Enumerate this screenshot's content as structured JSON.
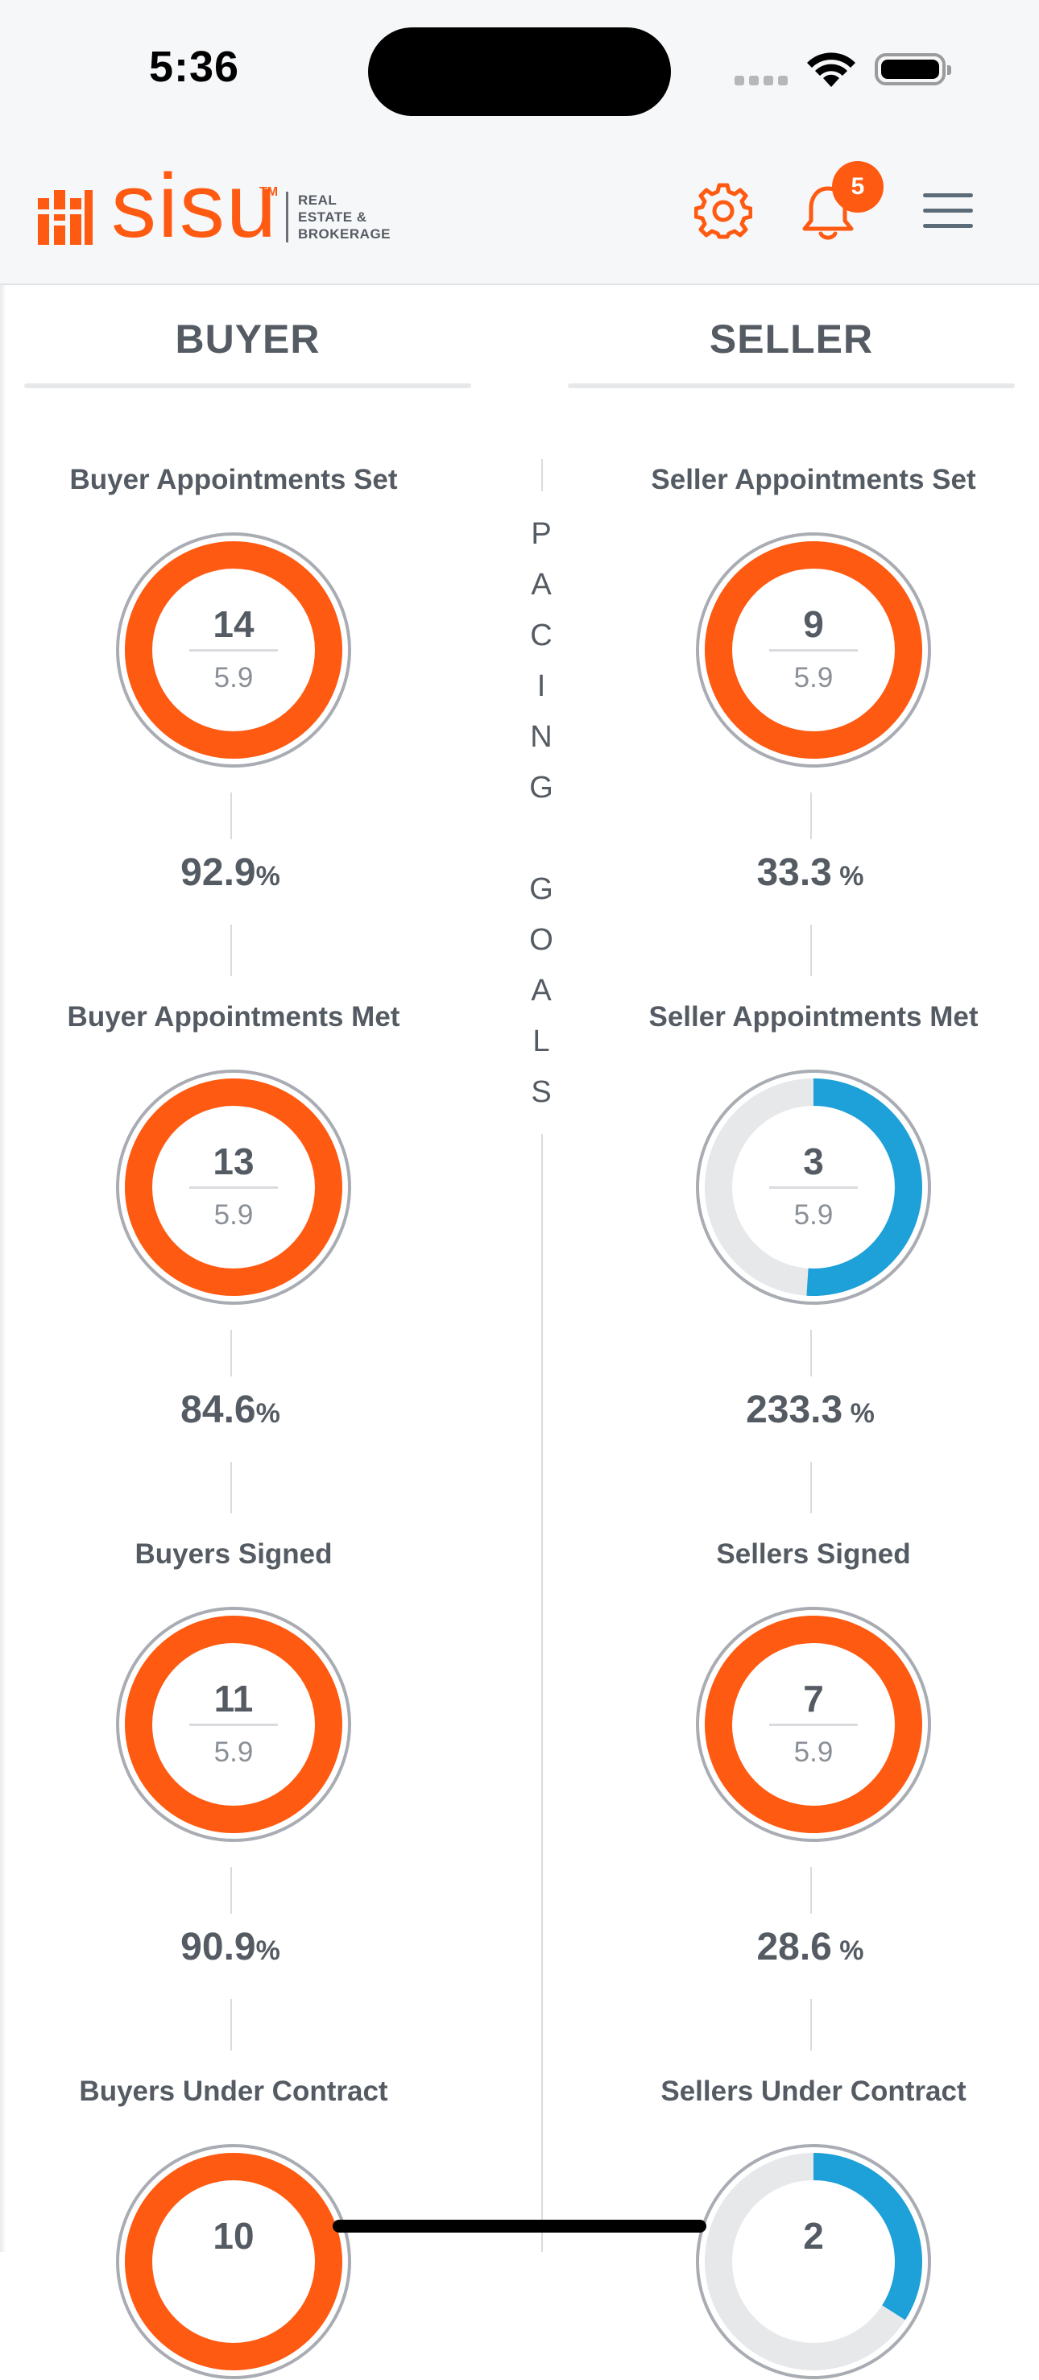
{
  "status_bar": {
    "time": "5:36"
  },
  "header": {
    "logo_text": "sisu",
    "logo_tm": "TM",
    "logo_sub": [
      "REAL",
      "ESTATE &",
      "BROKERAGE"
    ],
    "notification_count": "5",
    "icons": [
      "gear-icon",
      "bell-icon",
      "hamburger-menu-icon"
    ]
  },
  "tabs": [
    {
      "label": "BUYER"
    },
    {
      "label": "SELLER"
    }
  ],
  "pacing_letters": [
    "P",
    "A",
    "C",
    "I",
    "N",
    "G",
    "",
    "G",
    "O",
    "A",
    "L",
    "S"
  ],
  "buyer": [
    {
      "title": "Buyer Appointments Set",
      "value": "14",
      "goal": "5.9",
      "pct": "92.9",
      "pct_unit": "%",
      "progress": 1.0
    },
    {
      "title": "Buyer Appointments Met",
      "value": "13",
      "goal": "5.9",
      "pct": "84.6",
      "pct_unit": "%",
      "progress": 1.0
    },
    {
      "title": "Buyers Signed",
      "value": "11",
      "goal": "5.9",
      "pct": "90.9",
      "pct_unit": "%",
      "progress": 1.0
    },
    {
      "title": "Buyers Under Contract",
      "value": "10",
      "goal": "",
      "pct": "",
      "pct_unit": "",
      "progress": 1.0
    }
  ],
  "seller": [
    {
      "title": "Seller Appointments Set",
      "value": "9",
      "goal": "5.9",
      "pct": "33.3",
      "pct_unit": " %",
      "progress": 1.0
    },
    {
      "title": "Seller Appointments Met",
      "value": "3",
      "goal": "5.9",
      "pct": "233.3",
      "pct_unit": " %",
      "progress": 0.51
    },
    {
      "title": "Sellers Signed",
      "value": "7",
      "goal": "5.9",
      "pct": "28.6",
      "pct_unit": " %",
      "progress": 1.0
    },
    {
      "title": "Sellers Under Contract",
      "value": "2",
      "goal": "",
      "pct": "",
      "pct_unit": "",
      "progress": 0.34
    }
  ],
  "colors": {
    "accent": "#ff5a12",
    "under_goal": "#1ea0d8",
    "ring_track": "#e6e8ea",
    "ring_outline": "#a9adb3",
    "text": "#555b63"
  }
}
